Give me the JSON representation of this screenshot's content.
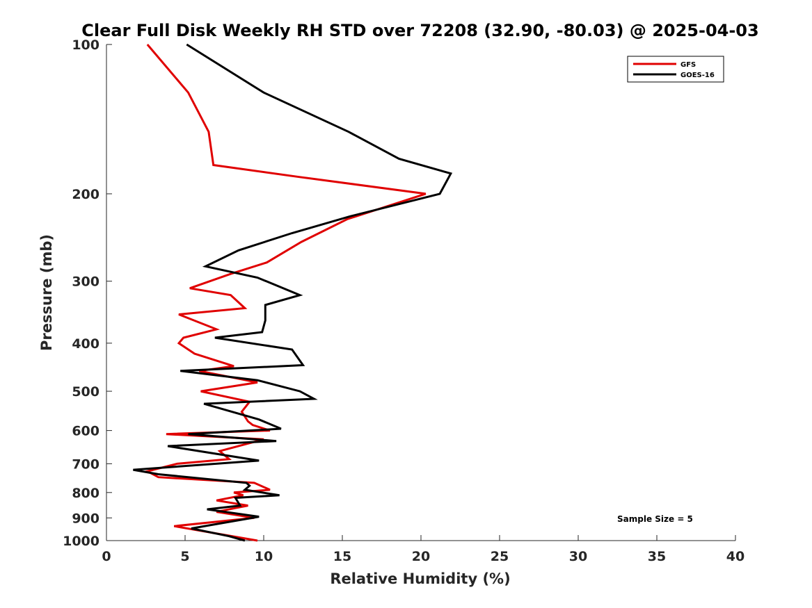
{
  "chart_data": {
    "type": "line",
    "title": "Clear Full Disk Weekly RH STD over 72208 (32.90, -80.03) @ 2025-04-03",
    "xlabel": "Relative Humidity (%)",
    "ylabel": "Pressure (mb)",
    "xlim": [
      0,
      40
    ],
    "ylim": [
      100,
      1000
    ],
    "y_scale": "log",
    "y_reversed": true,
    "x_ticks": [
      "0",
      "5",
      "10",
      "15",
      "20",
      "25",
      "30",
      "35",
      "40"
    ],
    "y_ticks": [
      "100",
      "200",
      "300",
      "400",
      "500",
      "600",
      "700",
      "800",
      "900",
      "1000"
    ],
    "legend_position": "top-right",
    "annotation": "Sample Size = 5",
    "series": [
      {
        "name": "GFS",
        "color": "#e00000",
        "x": [
          2.6,
          5.2,
          6.5,
          6.8,
          12.3,
          20.3,
          15.3,
          12.4,
          10.2,
          7.9,
          5.3,
          7.9,
          8.8,
          4.6,
          7.0,
          4.9,
          4.6,
          5.6,
          8.1,
          5.9,
          9.6,
          6.0,
          9.1,
          8.6,
          9.0,
          9.3,
          10.4,
          3.8,
          10.0,
          7.2,
          7.8,
          4.5,
          2.6,
          3.3,
          9.4,
          10.4,
          8.1,
          8.7,
          7.0,
          9.0,
          8.2,
          7.0,
          9.4,
          4.3,
          9.6
        ],
        "y": [
          100,
          125,
          150,
          175,
          185,
          200,
          225,
          250,
          275,
          290,
          310,
          320,
          340,
          350,
          375,
          390,
          400,
          420,
          445,
          455,
          480,
          500,
          525,
          550,
          575,
          585,
          600,
          610,
          625,
          660,
          685,
          700,
          725,
          745,
          765,
          790,
          800,
          810,
          830,
          850,
          860,
          875,
          900,
          935,
          1000
        ]
      },
      {
        "name": "GOES-16",
        "color": "#000000",
        "x": [
          5.1,
          10.0,
          15.4,
          18.6,
          21.9,
          21.2,
          15.5,
          11.8,
          8.4,
          6.3,
          9.6,
          12.3,
          10.1,
          10.1,
          9.9,
          6.9,
          11.8,
          12.5,
          4.7,
          9.6,
          12.3,
          13.2,
          6.2,
          9.7,
          11.1,
          5.2,
          10.8,
          3.9,
          9.7,
          1.7,
          3.3,
          8.9,
          9.1,
          8.8,
          11.0,
          8.2,
          8.5,
          6.4,
          9.7,
          5.4,
          7.8,
          8.8
        ],
        "y": [
          100,
          125,
          150,
          170,
          182,
          200,
          222,
          240,
          260,
          280,
          295,
          320,
          335,
          360,
          380,
          390,
          412,
          443,
          455,
          475,
          500,
          518,
          530,
          570,
          595,
          610,
          630,
          645,
          690,
          720,
          735,
          765,
          775,
          790,
          810,
          820,
          850,
          865,
          895,
          945,
          980,
          1000
        ]
      }
    ]
  }
}
